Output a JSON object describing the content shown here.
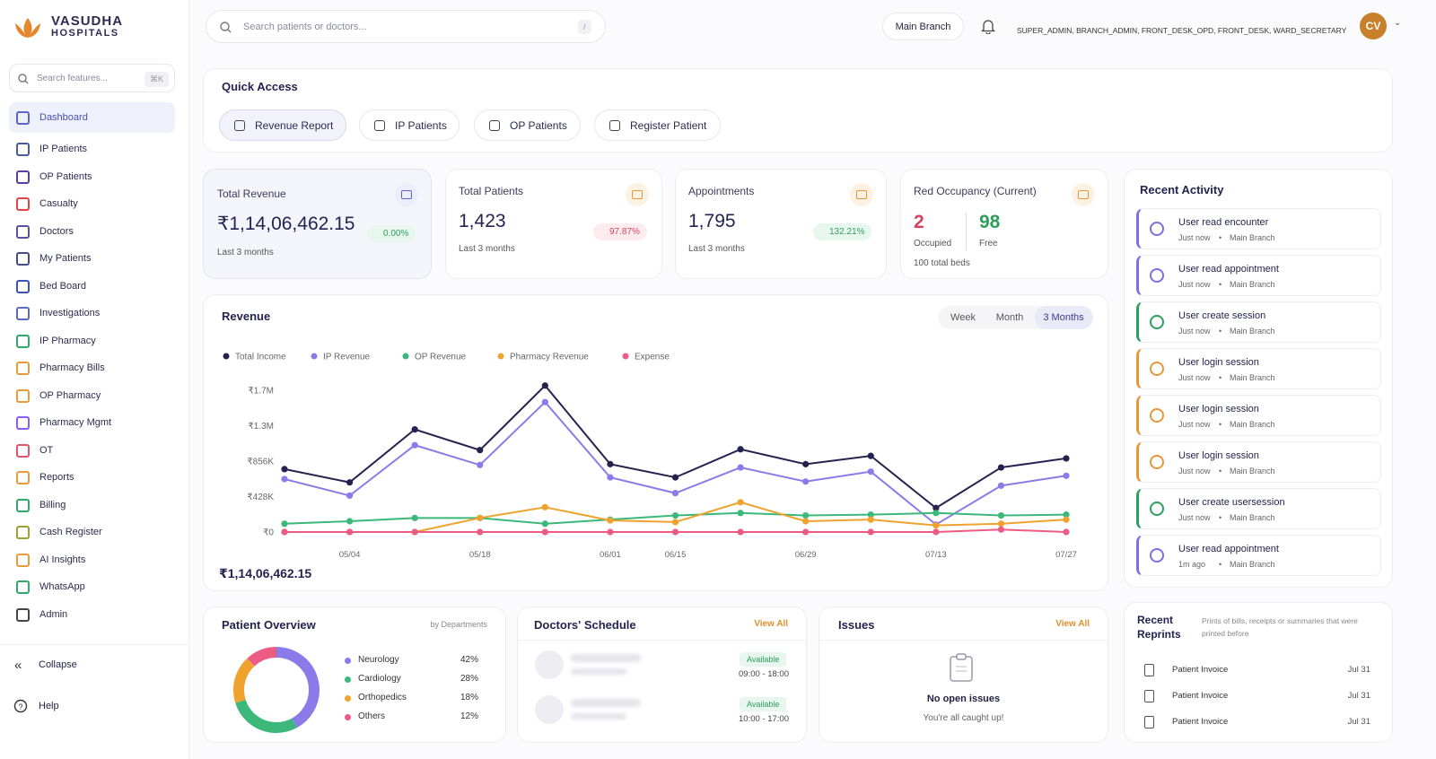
{
  "brand": {
    "name": "VASUDHA",
    "sub": "HOSPITALS"
  },
  "sidebar": {
    "search": "Search features...",
    "shortcut": "⌘K",
    "items": [
      "Dashboard",
      "IP Patients",
      "OP Patients",
      "Casualty",
      "Doctors",
      "My Patients",
      "Bed Board",
      "Investigations",
      "IP Pharmacy",
      "Pharmacy Bills",
      "OP Pharmacy",
      "Pharmacy Mgmt",
      "OT",
      "Reports",
      "Billing",
      "Cash Register",
      "AI Insights",
      "WhatsApp",
      "Admin"
    ],
    "collapse": "Collapse",
    "help": "Help"
  },
  "topbar": {
    "search": "Search patients or doctors...",
    "shortcut": "/",
    "branch": "Main Branch",
    "roles": "SUPER_ADMIN, BRANCH_ADMIN, FRONT_DESK_OPD, FRONT_DESK, WARD_SECRETARY",
    "avatar": "CV"
  },
  "quick_access": {
    "title": "Quick Access",
    "buttons": [
      "Revenue Report",
      "IP Patients",
      "OP Patients",
      "Register Patient"
    ]
  },
  "stats": [
    {
      "title": "Total Revenue",
      "value": "₹1,14,06,462.15",
      "change": "0.00%",
      "note": "Last 3 months"
    },
    {
      "title": "Total Patients",
      "value": "1,423",
      "change": "97.87%",
      "note": "Last 3 months"
    },
    {
      "title": "Appointments",
      "value": "1,795",
      "change": "132.21%",
      "note": "Last 3 months"
    }
  ],
  "occupancy": {
    "title": "Red Occupancy (Current)",
    "occupied": 2,
    "occupied_label": "Occupied",
    "free": 98,
    "free_label": "Free",
    "note": "100 total beds"
  },
  "revenue": {
    "title": "Revenue",
    "ranges": [
      "Week",
      "Month",
      "3 Months"
    ],
    "total": "₹1,14,06,462.15"
  },
  "activity": {
    "title": "Recent Activity",
    "items": [
      {
        "title": "User read encounter",
        "time": "Just now",
        "branch": "Main Branch"
      },
      {
        "title": "User read appointment",
        "time": "Just now",
        "branch": "Main Branch"
      },
      {
        "title": "User create session",
        "time": "Just now",
        "branch": "Main Branch"
      },
      {
        "title": "User login session",
        "time": "Just now",
        "branch": "Main Branch"
      },
      {
        "title": "User login session",
        "time": "Just now",
        "branch": "Main Branch"
      },
      {
        "title": "User login session",
        "time": "Just now",
        "branch": "Main Branch"
      },
      {
        "title": "User create usersession",
        "time": "Just now",
        "branch": "Main Branch"
      },
      {
        "title": "User read appointment",
        "time": "1m ago",
        "branch": "Main Branch"
      }
    ]
  },
  "patient_overview": {
    "title": "Patient Overview",
    "subtitle": "by Departments"
  },
  "doctors": {
    "title": "Doctors' Schedule",
    "link": "View All",
    "items": [
      {
        "status": "Available",
        "hours": "09:00 - 18:00"
      },
      {
        "status": "Available",
        "hours": "10:00 - 17:00"
      }
    ]
  },
  "issues": {
    "title": "Issues",
    "link": "View All",
    "empty": "No open issues",
    "note": "You're all caught up!"
  },
  "reprints": {
    "title": "Recent Reprints",
    "description": "Prints of bills, receipts or summaries that were printed before",
    "items": [
      {
        "name": "Patient Invoice",
        "date": "Jul 31"
      },
      {
        "name": "Patient Invoice",
        "date": "Jul 31"
      },
      {
        "name": "Patient Invoice",
        "date": "Jul 31"
      }
    ]
  },
  "chart_data": [
    {
      "type": "line",
      "categories": [
        null,
        "05/04",
        null,
        "05/18",
        null,
        "06/01",
        "06/15",
        null,
        "06/29",
        null,
        "07/13",
        null,
        "07/27"
      ],
      "ylim": [
        0,
        1800000
      ],
      "yticks": [
        {
          "value": 0,
          "label": "₹0"
        },
        {
          "value": 428000,
          "label": "₹428K"
        },
        {
          "value": 856000,
          "label": "₹856K"
        },
        {
          "value": 1284000,
          "label": "₹1.3M"
        },
        {
          "value": 1712000,
          "label": "₹1.7M"
        }
      ],
      "grid": false,
      "series": [
        {
          "name": "Total Income",
          "color": "#24234f",
          "values": [
            760000,
            600000,
            1240000,
            990000,
            1770000,
            820000,
            660000,
            1000000,
            820000,
            920000,
            290000,
            780000,
            890000
          ]
        },
        {
          "name": "IP Revenue",
          "color": "#8b7be8",
          "values": [
            640000,
            440000,
            1050000,
            810000,
            1570000,
            660000,
            470000,
            780000,
            610000,
            730000,
            90000,
            560000,
            680000
          ]
        },
        {
          "name": "OP Revenue",
          "color": "#3bb87a",
          "values": [
            100000,
            130000,
            170000,
            170000,
            100000,
            150000,
            200000,
            230000,
            200000,
            210000,
            230000,
            200000,
            210000
          ]
        },
        {
          "name": "Pharmacy Revenue",
          "color": "#f0a22e",
          "values": [
            0,
            0,
            0,
            170000,
            300000,
            140000,
            120000,
            360000,
            130000,
            150000,
            80000,
            100000,
            150000
          ]
        },
        {
          "name": "Expense",
          "color": "#ec5b84",
          "values": [
            0,
            0,
            0,
            0,
            0,
            0,
            0,
            0,
            0,
            0,
            0,
            30000,
            0
          ]
        }
      ]
    },
    {
      "type": "pie",
      "categories": [
        "Neurology",
        "Cardiology",
        "Orthopedics",
        "Others"
      ],
      "values": [
        42,
        28,
        18,
        12
      ],
      "value_labels": [
        "42%",
        "28%",
        "18%",
        "12%"
      ],
      "colors": [
        "#8b7be8",
        "#3bb87a",
        "#f0a22e",
        "#ec5b84"
      ]
    }
  ]
}
